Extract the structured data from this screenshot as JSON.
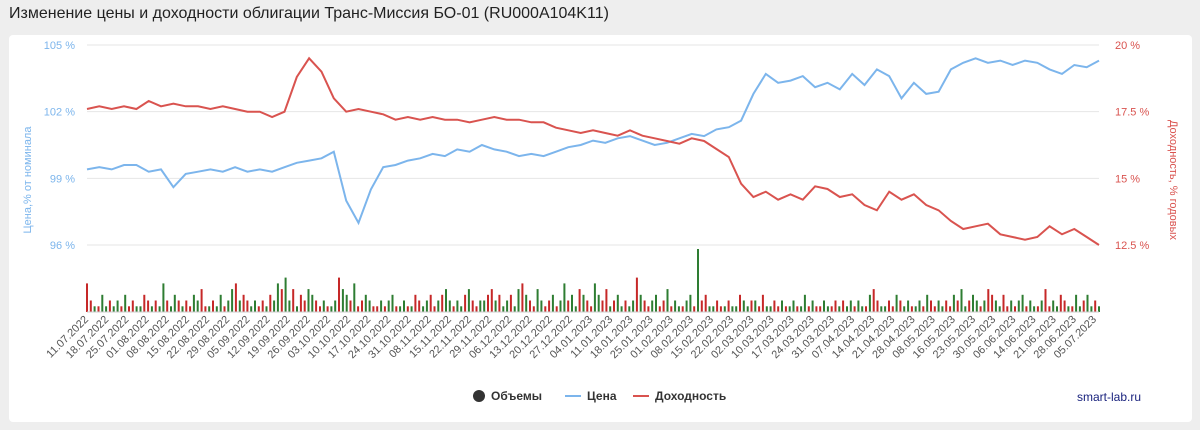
{
  "title": "Изменение цены и доходности облигации Транс-Миссия БО-01 (RU000A104K11)",
  "brand": "smart-lab.ru",
  "colors": {
    "price": "#7cb5ec",
    "yield": "#d9534f",
    "volume_up": "#2e7d32",
    "volume_down": "#c62828",
    "volume_legend": "#333333"
  },
  "chart_data": {
    "type": "line",
    "y_left": {
      "label": "Цена,% от номинала",
      "ticks": [
        "105 %",
        "102 %",
        "99 %",
        "96 %"
      ],
      "tick_values": [
        105,
        102,
        99,
        96
      ],
      "range": [
        96,
        105
      ]
    },
    "y_right": {
      "label": "Доходность, % годовых",
      "ticks": [
        "20 %",
        "17.5 %",
        "15 %",
        "12.5 %"
      ],
      "tick_values": [
        20,
        17.5,
        15,
        12.5
      ],
      "range": [
        12.5,
        20
      ]
    },
    "x_ticks": [
      "11.07.2022",
      "18.07.2022",
      "25.07.2022",
      "01.08.2022",
      "08.08.2022",
      "15.08.2022",
      "22.08.2022",
      "29.08.2022",
      "05.09.2022",
      "12.09.2022",
      "19.09.2022",
      "26.09.2022",
      "03.10.2022",
      "10.10.2022",
      "17.10.2022",
      "24.10.2022",
      "31.10.2022",
      "08.11.2022",
      "15.11.2022",
      "22.11.2022",
      "29.11.2022",
      "06.12.2022",
      "13.12.2022",
      "20.12.2022",
      "27.12.2022",
      "04.01.2023",
      "11.01.2023",
      "18.01.2023",
      "25.01.2023",
      "01.02.2023",
      "08.02.2023",
      "15.02.2023",
      "22.02.2023",
      "02.03.2023",
      "10.03.2023",
      "17.03.2023",
      "24.03.2023",
      "31.03.2023",
      "07.04.2023",
      "14.04.2023",
      "21.04.2023",
      "28.04.2023",
      "08.05.2023",
      "16.05.2023",
      "23.05.2023",
      "30.05.2023",
      "06.06.2023",
      "14.06.2023",
      "21.06.2023",
      "28.06.2023",
      "05.07.2023"
    ],
    "legend": [
      "Объемы",
      "Цена",
      "Доходность"
    ],
    "series": [
      {
        "name": "Цена",
        "values": [
          99.4,
          99.5,
          99.4,
          99.6,
          99.6,
          99.3,
          99.4,
          98.6,
          99.2,
          99.3,
          99.4,
          99.3,
          99.5,
          99.3,
          99.4,
          99.3,
          99.5,
          99.7,
          99.8,
          99.9,
          100.2,
          98.0,
          97.0,
          98.5,
          99.5,
          99.6,
          99.8,
          99.9,
          100.1,
          100.0,
          100.3,
          100.2,
          100.5,
          100.3,
          100.2,
          100.0,
          100.1,
          100.0,
          100.2,
          100.4,
          100.5,
          100.7,
          100.6,
          100.8,
          100.9,
          100.7,
          100.5,
          100.6,
          100.8,
          101.0,
          100.9,
          101.2,
          101.3,
          101.6,
          102.8,
          103.7,
          103.3,
          103.4,
          103.6,
          103.1,
          103.3,
          103.0,
          103.7,
          103.2,
          103.9,
          103.6,
          102.6,
          103.3,
          102.8,
          102.9,
          103.9,
          104.2,
          104.4,
          104.2,
          104.3,
          104.1,
          104.3,
          104.2,
          103.9,
          103.7,
          104.1,
          104.0,
          104.3
        ]
      },
      {
        "name": "Доходность",
        "values": [
          17.6,
          17.7,
          17.6,
          17.7,
          17.6,
          17.9,
          17.7,
          17.8,
          17.7,
          17.7,
          17.6,
          17.7,
          17.6,
          17.5,
          17.5,
          17.3,
          17.5,
          18.8,
          19.5,
          19.0,
          18.0,
          17.5,
          17.6,
          17.5,
          17.4,
          17.2,
          17.3,
          17.2,
          17.3,
          17.2,
          17.2,
          17.1,
          17.2,
          17.3,
          17.2,
          17.2,
          17.1,
          17.1,
          16.9,
          16.8,
          16.7,
          16.8,
          16.7,
          16.6,
          16.8,
          16.6,
          16.5,
          16.4,
          16.3,
          16.5,
          16.4,
          16.1,
          15.8,
          14.8,
          14.3,
          14.5,
          14.2,
          14.4,
          14.2,
          14.7,
          14.6,
          14.3,
          14.4,
          14.0,
          13.8,
          14.5,
          14.2,
          14.4,
          14.0,
          13.8,
          13.4,
          13.1,
          13.2,
          13.3,
          12.9,
          12.8,
          12.7,
          12.8,
          13.2,
          12.9,
          13.1,
          12.8,
          12.5
        ]
      },
      {
        "name": "Объемы",
        "values": [
          5,
          2,
          1,
          1,
          3,
          1,
          2,
          1,
          2,
          1,
          3,
          1,
          2,
          1,
          1,
          3,
          2,
          1,
          2,
          1,
          5,
          2,
          1,
          3,
          2,
          1,
          2,
          1,
          3,
          2,
          4,
          1,
          1,
          2,
          1,
          3,
          1,
          2,
          4,
          5,
          2,
          3,
          2,
          1,
          2,
          1,
          2,
          1,
          3,
          2,
          5,
          4,
          6,
          2,
          4,
          1,
          3,
          2,
          4,
          3,
          2,
          1,
          2,
          1,
          1,
          2,
          6,
          4,
          3,
          2,
          5,
          1,
          2,
          3,
          2,
          1,
          1,
          2,
          1,
          2,
          3,
          1,
          1,
          2,
          1,
          1,
          3,
          2,
          1,
          2,
          3,
          1,
          2,
          3,
          4,
          2,
          1,
          2,
          1,
          3,
          4,
          2,
          1,
          2,
          2,
          3,
          4,
          2,
          3,
          1,
          2,
          3,
          1,
          4,
          5,
          3,
          2,
          1,
          4,
          2,
          1,
          2,
          3,
          1,
          2,
          5,
          2,
          3,
          1,
          4,
          3,
          2,
          1,
          5,
          3,
          2,
          4,
          1,
          2,
          3,
          1,
          2,
          1,
          2,
          6,
          3,
          2,
          1,
          2,
          3,
          1,
          2,
          4,
          1,
          2,
          1,
          1,
          2,
          3,
          1,
          11,
          2,
          3,
          1,
          1,
          2,
          1,
          1,
          2,
          1,
          1,
          3,
          2,
          1,
          2,
          2,
          1,
          3,
          1,
          1,
          2,
          1,
          2,
          1,
          1,
          2,
          1,
          1,
          3,
          1,
          2,
          1,
          1,
          2,
          1,
          1,
          2,
          1,
          2,
          1,
          2,
          1,
          2,
          1,
          1,
          3,
          4,
          2,
          1,
          1,
          2,
          1,
          3,
          2,
          1,
          2,
          1,
          1,
          2,
          1,
          3,
          2,
          1,
          2,
          1,
          2,
          1,
          3,
          2,
          4,
          1,
          2,
          3,
          2,
          1,
          2,
          4,
          3,
          2,
          1,
          3,
          1,
          2,
          1,
          2,
          3,
          1,
          2,
          1,
          1,
          2,
          4,
          1,
          2,
          1,
          3,
          2,
          1,
          1,
          3,
          1,
          2,
          3,
          1,
          2,
          1
        ]
      }
    ]
  }
}
